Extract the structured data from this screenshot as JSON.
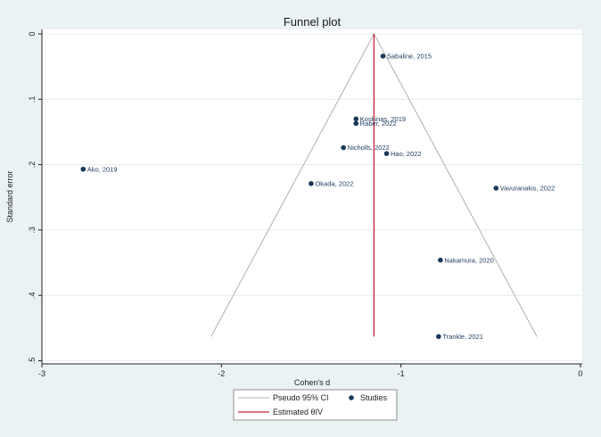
{
  "colors": {
    "background": "#eaf2f3",
    "plot_background": "#ffffff",
    "grid": "#e4ecee",
    "marker": "#1a3a5c",
    "funnel": "#b0b0b0",
    "estimate": "#c8203c"
  },
  "chart_data": {
    "type": "scatter",
    "title": "Funnel plot",
    "xlabel": "Cohen's d",
    "ylabel": "Standard error",
    "xlim": [
      -3,
      0
    ],
    "ylim": [
      0,
      0.5
    ],
    "y_reversed": true,
    "x_ticks": [
      -3,
      -2,
      -1,
      0
    ],
    "y_ticks": [
      0,
      0.1,
      0.2,
      0.3,
      0.4,
      0.5
    ],
    "x_tick_labels": [
      "-3",
      "-2",
      "-1",
      "0"
    ],
    "y_tick_labels": [
      "0",
      ".1",
      ".2",
      ".3",
      ".4",
      ".5"
    ],
    "grid": true,
    "points": [
      {
        "label": "Sabaline, 2015",
        "x": -1.1,
        "y": 0.034
      },
      {
        "label": "Koskinas, 2019",
        "x": -1.25,
        "y": 0.13
      },
      {
        "label": "Raber, 2022",
        "x": -1.25,
        "y": 0.137
      },
      {
        "label": "Nicholls, 2022",
        "x": -1.32,
        "y": 0.174
      },
      {
        "label": "Hao, 2022",
        "x": -1.08,
        "y": 0.183
      },
      {
        "label": "Ako, 2019",
        "x": -2.77,
        "y": 0.207
      },
      {
        "label": "Okada, 2022",
        "x": -1.5,
        "y": 0.229
      },
      {
        "label": "Vavuranakis, 2022",
        "x": -0.47,
        "y": 0.236
      },
      {
        "label": "Nakamura, 2020",
        "x": -0.78,
        "y": 0.346
      },
      {
        "label": "Trankle, 2021",
        "x": -0.79,
        "y": 0.463
      }
    ],
    "estimate_x": -1.15,
    "funnel_se_max": 0.463,
    "legend": {
      "placement": "bottom",
      "pseudo_ci": "Pseudo 95% CI",
      "studies": "Studies",
      "estimate": "Estimated θIV"
    }
  }
}
